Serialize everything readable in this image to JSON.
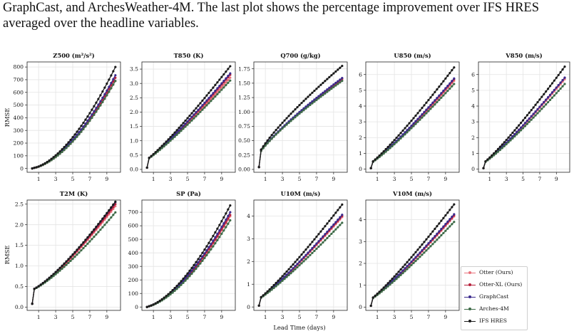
{
  "caption": {
    "line1": "GraphCast, and ArchesWeather-4M. The last plot shows the percentage improvement over IFS HRES",
    "line2": "averaged over the headline variables."
  },
  "shared": {
    "xlabel": "Lead Time (days)",
    "ylabel": "RMSE",
    "x": [
      0.25,
      0.5,
      0.75,
      1,
      1.25,
      1.5,
      1.75,
      2,
      2.25,
      2.5,
      2.75,
      3,
      3.25,
      3.5,
      3.75,
      4,
      4.25,
      4.5,
      4.75,
      5,
      5.25,
      5.5,
      5.75,
      6,
      6.25,
      6.5,
      6.75,
      7,
      7.25,
      7.5,
      7.75,
      8,
      8.25,
      8.5,
      8.75,
      9,
      9.25,
      9.5,
      9.75,
      10
    ],
    "xticks": [
      1,
      3,
      5,
      7,
      9
    ],
    "xlim": [
      -0.35,
      10.6
    ]
  },
  "legend": {
    "items": [
      {
        "name": "Otter (Ours)",
        "color": "#e8707a"
      },
      {
        "name": "Otter-XL (Ours)",
        "color": "#b51f3a"
      },
      {
        "name": "GraphCast",
        "color": "#3b2a8c"
      },
      {
        "name": "Arches-4M",
        "color": "#3e6b48"
      },
      {
        "name": "IFS HRES",
        "color": "#1a1a1a"
      }
    ]
  },
  "chart_data": [
    {
      "type": "line",
      "title": "Z500 (m²/s²)",
      "ylim": [
        -30,
        840
      ],
      "yticks": [
        0,
        100,
        200,
        300,
        400,
        500,
        600,
        700,
        800
      ],
      "start": 0,
      "ends": {
        "Otter (Ours)": 690,
        "Otter-XL (Ours)": 715,
        "GraphCast": 735,
        "Arches-4M": 690,
        "IFS HRES": 800
      },
      "shape": 1.7
    },
    {
      "type": "line",
      "title": "T850 (K)",
      "ylim": [
        -0.1,
        3.75
      ],
      "yticks": [
        0.0,
        0.5,
        1.0,
        1.5,
        2.0,
        2.5,
        3.0,
        3.5
      ],
      "start": 0.3,
      "ends": {
        "Otter (Ours)": 3.2,
        "Otter-XL (Ours)": 3.3,
        "GraphCast": 3.35,
        "Arches-4M": 3.1,
        "IFS HRES": 3.6
      },
      "shape": 1.15
    },
    {
      "type": "line",
      "title": "Q700 (g/kg)",
      "ylim": [
        -0.05,
        1.87
      ],
      "yticks": [
        0.0,
        0.25,
        0.5,
        0.75,
        1.0,
        1.25,
        1.5,
        1.75
      ],
      "start": 0.2,
      "ends": {
        "Otter (Ours)": 1.56,
        "Otter-XL (Ours)": 1.58,
        "GraphCast": 1.59,
        "Arches-4M": 1.54,
        "IFS HRES": 1.8
      },
      "shape": 0.8
    },
    {
      "type": "line",
      "title": "U850 (m/s)",
      "ylim": [
        -0.2,
        6.8
      ],
      "yticks": [
        0,
        1,
        2,
        3,
        4,
        5,
        6
      ],
      "start": 0.3,
      "ends": {
        "Otter (Ours)": 5.6,
        "Otter-XL (Ours)": 5.7,
        "GraphCast": 5.75,
        "Arches-4M": 5.4,
        "IFS HRES": 6.45
      },
      "shape": 1.15
    },
    {
      "type": "line",
      "title": "V850 (m/s)",
      "ylim": [
        -0.2,
        6.8
      ],
      "yticks": [
        0,
        1,
        2,
        3,
        4,
        5,
        6
      ],
      "start": 0.3,
      "ends": {
        "Otter (Ours)": 5.7,
        "Otter-XL (Ours)": 5.8,
        "GraphCast": 5.8,
        "Arches-4M": 5.4,
        "IFS HRES": 6.5
      },
      "shape": 1.15
    },
    {
      "type": "line",
      "title": "T2M (K)",
      "ylim": [
        -0.08,
        2.6
      ],
      "yticks": [
        0.0,
        0.5,
        1.0,
        1.5,
        2.0,
        2.5
      ],
      "start": 0.4,
      "ends": {
        "Otter (Ours)": 2.45,
        "Otter-XL (Ours)": 2.5,
        "GraphCast": 2.55,
        "Arches-4M": 2.3,
        "IFS HRES": 2.56
      },
      "shape": 1.3
    },
    {
      "type": "line",
      "title": "SP (Pa)",
      "ylim": [
        -25,
        790
      ],
      "yticks": [
        0,
        100,
        200,
        300,
        400,
        500,
        600,
        700
      ],
      "start": 0,
      "ends": {
        "Otter (Ours)": 670,
        "Otter-XL (Ours)": 680,
        "GraphCast": 700,
        "Arches-4M": 640,
        "IFS HRES": 750
      },
      "shape": 1.6
    },
    {
      "type": "line",
      "title": "U10M (m/s)",
      "ylim": [
        -0.15,
        4.7
      ],
      "yticks": [
        0,
        1,
        2,
        3,
        4
      ],
      "start": 0.3,
      "ends": {
        "Otter (Ours)": 3.95,
        "Otter-XL (Ours)": 4.0,
        "GraphCast": 4.05,
        "Arches-4M": 3.7,
        "IFS HRES": 4.5
      },
      "shape": 1.15
    },
    {
      "type": "line",
      "title": "V10M (m/s)",
      "ylim": [
        -0.15,
        4.9
      ],
      "yticks": [
        0,
        1,
        2,
        3,
        4
      ],
      "start": 0.3,
      "ends": {
        "Otter (Ours)": 4.15,
        "Otter-XL (Ours)": 4.2,
        "GraphCast": 4.25,
        "Arches-4M": 3.9,
        "IFS HRES": 4.7
      },
      "shape": 1.15
    }
  ]
}
